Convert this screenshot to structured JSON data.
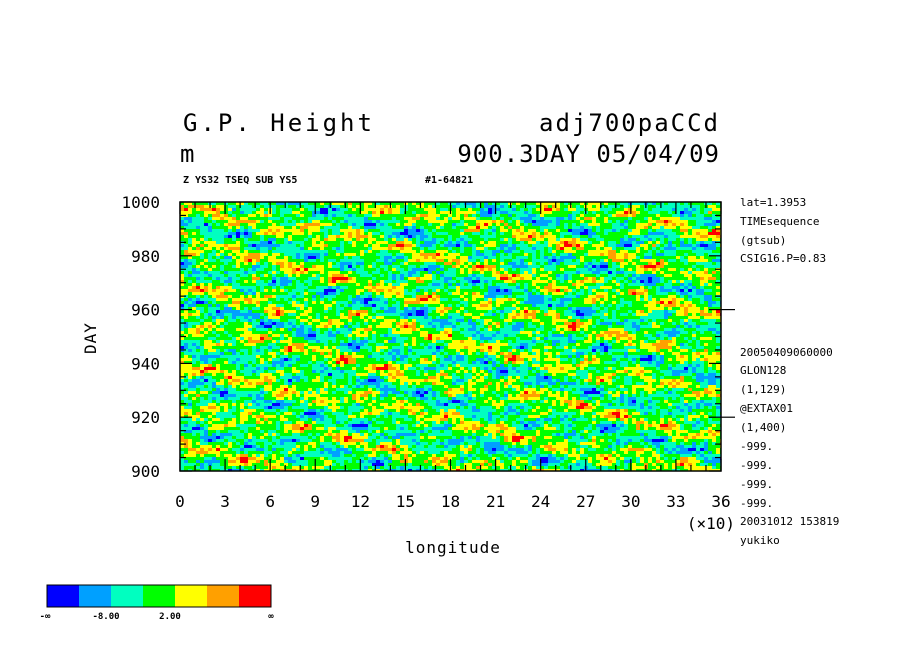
{
  "header": {
    "title_left": "G.P. Height",
    "title_right": "adj700paCCd",
    "units": "m",
    "subtitle_right": "900.3DAY 05/04/09",
    "small_left": "Z YS32 TSEQ SUB YS5",
    "small_right": "#1-64821"
  },
  "side_info": [
    "lat=1.3953",
    "TIMEsequence",
    "(gtsub)",
    "CSIG16.P=0.83",
    "20050409060000",
    "GLON128",
    "(1,129)",
    "@EXTAX01",
    "(1,400)",
    "-999.",
    "-999.",
    "-999.",
    "-999.",
    "20031012 153819",
    "yukiko"
  ],
  "chart_data": {
    "type": "heatmap",
    "xlabel": "longitude",
    "ylabel": "DAY",
    "x_multiplier": "(×10)",
    "xlim": [
      0,
      36
    ],
    "ylim": [
      900,
      1000
    ],
    "x_ticks": [
      "0",
      "3",
      "6",
      "9",
      "12",
      "15",
      "18",
      "21",
      "24",
      "27",
      "30",
      "33",
      "36"
    ],
    "y_ticks": [
      "900",
      "920",
      "940",
      "960",
      "980",
      "1000"
    ],
    "colorbar": {
      "colors": [
        "#0000ff",
        "#00a0ff",
        "#00ffc0",
        "#00ff00",
        "#ffff00",
        "#ffa000",
        "#ff0000"
      ],
      "labels": [
        "-∞",
        "-8.00",
        "2.00",
        "∞"
      ]
    }
  }
}
